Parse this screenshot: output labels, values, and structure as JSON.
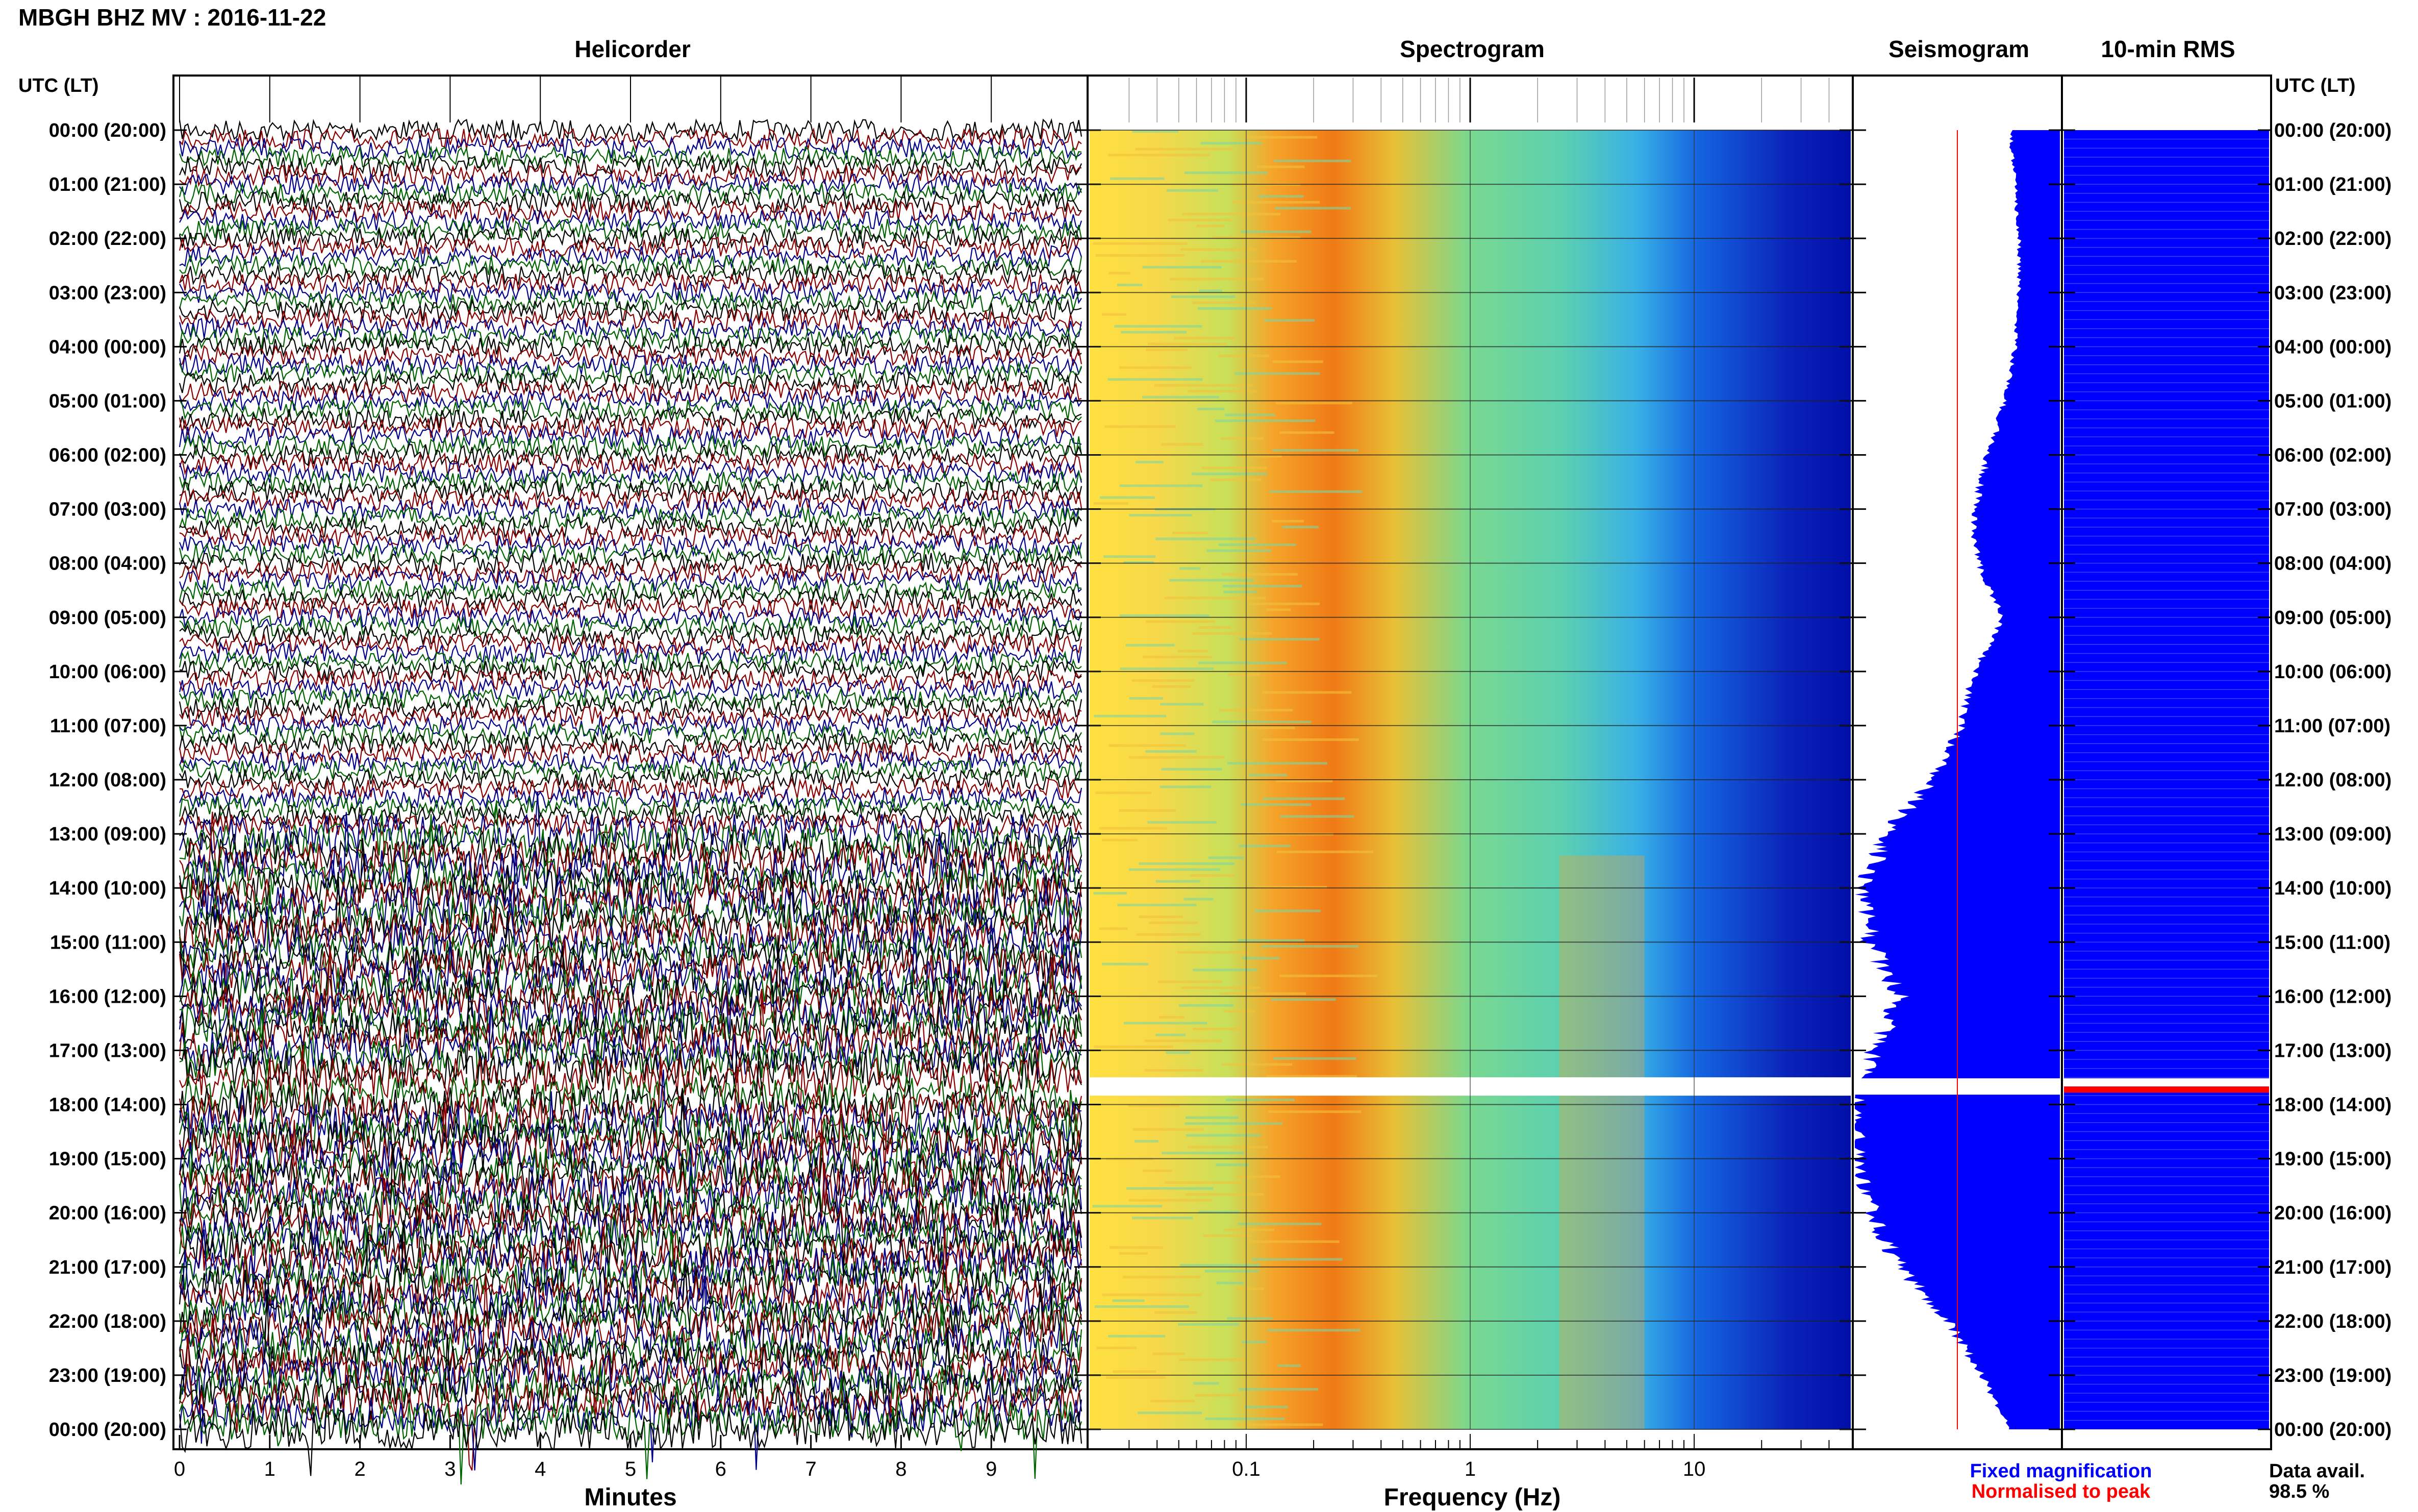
{
  "header": {
    "station_title": "MBGH BHZ MV : 2016-11-22"
  },
  "panels": {
    "helicorder_title": "Helicorder",
    "spectrogram_title": "Spectrogram",
    "seismogram_title": "Seismogram",
    "rms_title": "10-min RMS"
  },
  "axes": {
    "time_axis_label_left": "UTC (LT)",
    "time_axis_label_right": "UTC (LT)",
    "helicorder_xlabel": "Minutes",
    "spectrogram_xlabel": "Frequency (Hz)"
  },
  "legend": {
    "fixed_magnification": "Fixed magnification",
    "normalised_to_peak": "Normalised to peak",
    "fixed_color": "#0000ff",
    "normalised_color": "#ff0000"
  },
  "data_availability": {
    "label": "Data avail.",
    "value": "98.5 %"
  },
  "colors": {
    "trace_colors": [
      "#000000",
      "#8b0000",
      "#00008b",
      "#006400"
    ],
    "spectrogram_low": "#00008b",
    "spectrogram_high": "#ff4500",
    "seismogram_fill": "#0000ff"
  },
  "chart_data": [
    {
      "type": "line",
      "title": "Helicorder",
      "xlabel": "Minutes",
      "ylabel": "UTC (LT)",
      "x_ticks": [
        "0",
        "1",
        "2",
        "3",
        "4",
        "5",
        "6",
        "7",
        "8",
        "9"
      ],
      "xlim": [
        0,
        10
      ],
      "rows_per_hour": 6,
      "gap_utc": "17:40",
      "high_amplitude_from_utc": "13:00",
      "y_ticks": [
        "00:00 (20:00)",
        "01:00 (21:00)",
        "02:00 (22:00)",
        "03:00 (23:00)",
        "04:00 (00:00)",
        "05:00 (01:00)",
        "06:00 (02:00)",
        "07:00 (03:00)",
        "08:00 (04:00)",
        "09:00 (05:00)",
        "10:00 (06:00)",
        "11:00 (07:00)",
        "12:00 (08:00)",
        "13:00 (09:00)",
        "14:00 (10:00)",
        "15:00 (11:00)",
        "16:00 (12:00)",
        "17:00 (13:00)",
        "18:00 (14:00)",
        "19:00 (15:00)",
        "20:00 (16:00)",
        "21:00 (17:00)",
        "22:00 (18:00)",
        "23:00 (19:00)",
        "00:00 (20:00)"
      ]
    },
    {
      "type": "heatmap",
      "title": "Spectrogram",
      "xlabel": "Frequency (Hz)",
      "x_scale": "log",
      "x_ticks": [
        "0.1",
        "1",
        "10"
      ],
      "xlim": [
        0.02,
        50
      ],
      "dominant_band_hz": [
        0.15,
        0.4
      ],
      "secondary_band_hz": [
        2.5,
        6
      ],
      "secondary_band_from_utc": "13:00"
    },
    {
      "type": "area",
      "title": "Seismogram",
      "series": [
        {
          "name": "Fixed magnification",
          "hours": [
            0,
            1,
            2,
            3,
            4,
            5,
            6,
            7,
            8,
            9,
            10,
            11,
            12,
            13,
            14,
            15,
            16,
            17,
            17.7,
            18,
            19,
            20,
            21,
            22,
            23,
            24
          ],
          "relative_amplitude": [
            0.24,
            0.22,
            0.2,
            0.2,
            0.22,
            0.27,
            0.35,
            0.42,
            0.4,
            0.28,
            0.42,
            0.48,
            0.62,
            0.85,
            0.95,
            0.93,
            0.78,
            0.9,
            1.0,
            1.0,
            1.0,
            0.92,
            0.78,
            0.55,
            0.38,
            0.25
          ]
        },
        {
          "name": "Normalised to peak",
          "hours": [
            0,
            24
          ],
          "relative_amplitude": [
            0.5,
            0.5
          ]
        }
      ]
    },
    {
      "type": "bar",
      "title": "10-min RMS",
      "gap_utc": "17:40"
    }
  ]
}
